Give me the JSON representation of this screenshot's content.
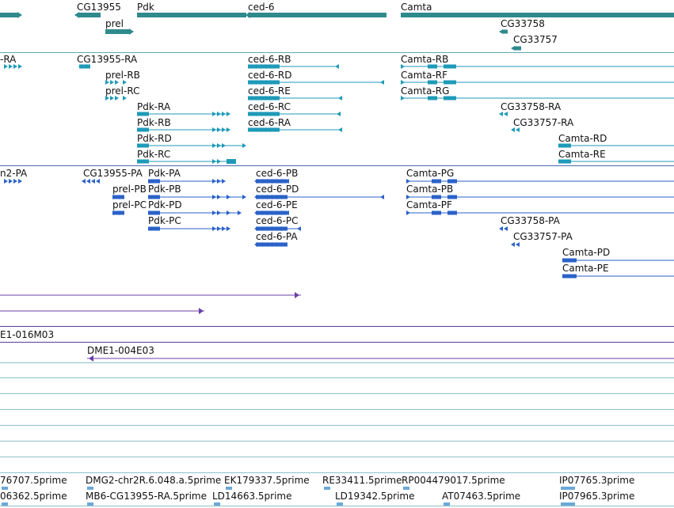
{
  "colors": {
    "gene": "#2e8a8c",
    "transcript_rb": "#1e9ab8",
    "transcript_pa": "#2a62c8",
    "clone": "#6b3fa8",
    "est": "#6ca8d8",
    "separator_cyan": "#4aa0ac",
    "separator_blue": "#4a6ab0",
    "separator_purple": "#5a3a9a"
  },
  "tracks": {
    "genes": {
      "labels": [
        "CG13955",
        "Pdk",
        "ced-6",
        "Camta",
        "prel",
        "CG33758",
        "CG33757"
      ]
    },
    "transcripts_r": {
      "labels": [
        "-RA",
        "CG13955-RA",
        "prel-RB",
        "prel-RC",
        "Pdk-RA",
        "Pdk-RB",
        "Pdk-RD",
        "Pdk-RC",
        "ced-6-RB",
        "ced-6-RD",
        "ced-6-RE",
        "ced-6-RC",
        "ced-6-RA",
        "Camta-RB",
        "Camta-RF",
        "Camta-RG",
        "CG33758-RA",
        "CG33757-RA",
        "Camta-RD",
        "Camta-RE"
      ]
    },
    "transcripts_p": {
      "labels": [
        "n2-PA",
        "CG13955-PA",
        "Pdk-PA",
        "prel-PB",
        "Pdk-PB",
        "prel-PC",
        "Pdk-PD",
        "Pdk-PC",
        "ced-6-PB",
        "ced-6-PD",
        "ced-6-PE",
        "ced-6-PC",
        "ced-6-PA",
        "Camta-PG",
        "Camta-PB",
        "Camta-PF",
        "CG33758-PA",
        "CG33757-PA",
        "Camta-PD",
        "Camta-PE"
      ]
    },
    "clones": {
      "labels": [
        "E1-016M03",
        "DME1-004E03"
      ]
    },
    "ests": {
      "labels": [
        "76707.5prime",
        "DMG2-chr2R.6.048.a.5prime",
        "EK179337.5prime",
        "RE33411.5prime",
        "RP004479017.5prime",
        "IP07765.3prime",
        "06362.5prime",
        "MB6-CG13955-RA.5prime",
        "LD14663.5prime",
        "LD19342.5prime",
        "AT07463.5prime",
        "IP07965.3prime"
      ]
    }
  }
}
